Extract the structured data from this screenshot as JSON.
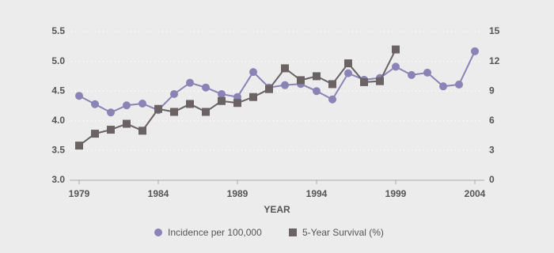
{
  "chart_data": {
    "type": "line",
    "x_label": "YEAR",
    "x": [
      1979,
      1980,
      1981,
      1982,
      1983,
      1984,
      1985,
      1986,
      1987,
      1988,
      1989,
      1990,
      1991,
      1992,
      1993,
      1994,
      1995,
      1996,
      1997,
      1998,
      1999,
      2000,
      2001,
      2002,
      2003,
      2004
    ],
    "xlim": [
      1979,
      2004
    ],
    "xticks": [
      1979,
      1984,
      1989,
      1994,
      1999,
      2004
    ],
    "ylim": [
      3.0,
      5.5
    ],
    "yticks": [
      {
        "value": 3,
        "label": "3.0"
      },
      3.5,
      {
        "value": 4,
        "label": "4.0"
      },
      4.5,
      {
        "value": 5,
        "label": "5.0"
      },
      5.5
    ],
    "y2lim": [
      0,
      15
    ],
    "y2ticks": [
      0,
      3,
      6,
      9,
      12,
      15
    ],
    "grid": true,
    "legend": "bottom",
    "series": [
      {
        "name": "Incidence per 100,000",
        "color": "#8a83b6",
        "marker": "circle",
        "values": [
          4.42,
          4.28,
          4.14,
          4.26,
          4.29,
          4.18,
          4.45,
          4.64,
          4.56,
          4.45,
          4.4,
          4.82,
          4.56,
          4.6,
          4.62,
          4.5,
          4.36,
          4.8,
          4.69,
          4.72,
          4.91,
          4.77,
          4.81,
          4.58,
          4.61,
          5.17
        ]
      },
      {
        "name": "5-Year Survival (%)",
        "color": "#6b6264",
        "marker": "square",
        "axis": "y2",
        "values": [
          3.5,
          4.7,
          5.1,
          5.7,
          5.0,
          7.2,
          6.9,
          7.7,
          6.9,
          8.0,
          7.8,
          8.4,
          9.2,
          11.3,
          10.1,
          10.5,
          9.7,
          11.8,
          9.9,
          10.0,
          13.2,
          null,
          null,
          null,
          null,
          null
        ]
      }
    ]
  }
}
